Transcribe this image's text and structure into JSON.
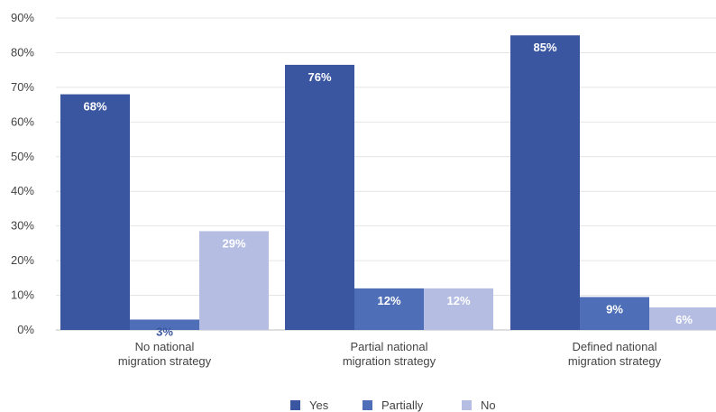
{
  "chart_data": {
    "type": "bar",
    "categories": [
      [
        "No national",
        "migration strategy"
      ],
      [
        "Partial national",
        "migration strategy"
      ],
      [
        "Defined national",
        "migration strategy"
      ]
    ],
    "series": [
      {
        "name": "Yes",
        "color": "#3a56a0",
        "values": [
          68,
          76.5,
          85
        ],
        "labels": [
          "68%",
          "76%",
          "85%"
        ],
        "label_color": "#ffffff",
        "label_pos": "top"
      },
      {
        "name": "Partially",
        "color": "#4e6fb8",
        "values": [
          3,
          12,
          9.5
        ],
        "labels": [
          "3%",
          "12%",
          "9%"
        ],
        "label_colors": [
          "#3a56a0",
          "#ffffff",
          "#ffffff"
        ],
        "label_pos": "top"
      },
      {
        "name": "No",
        "color": "#b5bee2",
        "values": [
          28.5,
          12,
          6.5
        ],
        "labels": [
          "29%",
          "12%",
          "6%"
        ],
        "label_color": "#ffffff",
        "label_pos": "top"
      }
    ],
    "ylim": [
      0,
      90
    ],
    "yticks": [
      0,
      10,
      20,
      30,
      40,
      50,
      60,
      70,
      80,
      90
    ],
    "ytick_labels": [
      "0%",
      "10%",
      "20%",
      "30%",
      "40%",
      "50%",
      "60%",
      "70%",
      "80%",
      "90%"
    ],
    "grid": true,
    "legend": "bottom-center",
    "title": "",
    "xlabel": "",
    "ylabel": ""
  }
}
